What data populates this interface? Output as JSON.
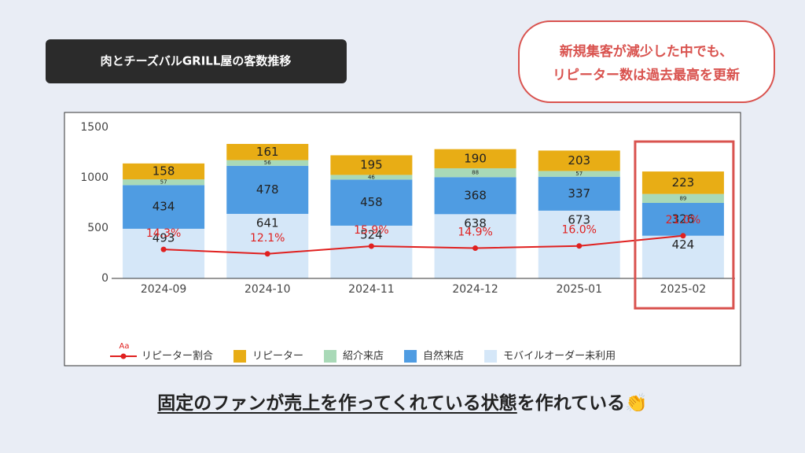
{
  "title": "肉とチーズバルGRILL屋の客数推移",
  "callout": [
    "新規集客が減少した中でも、",
    "リピーター数は過去最高を更新"
  ],
  "caption": {
    "underlined": "固定のファンが売上を作ってくれている状態",
    "rest": "を作れている👏"
  },
  "chart_data": {
    "type": "bar",
    "stacked": true,
    "categories": [
      "2024-09",
      "2024-10",
      "2024-11",
      "2024-12",
      "2025-01",
      "2025-02"
    ],
    "series": [
      {
        "name": "モバイルオーダー未利用",
        "color": "#d5e7f8",
        "values": [
          493,
          641,
          524,
          638,
          673,
          424
        ]
      },
      {
        "name": "自然来店",
        "color": "#4f9ce2",
        "values": [
          434,
          478,
          458,
          368,
          337,
          326
        ]
      },
      {
        "name": "紹介来店",
        "color": "#a9d9b7",
        "values": [
          57,
          56,
          46,
          88,
          57,
          89
        ]
      },
      {
        "name": "リピーター",
        "color": "#e8ad15",
        "values": [
          158,
          161,
          195,
          190,
          203,
          223
        ]
      },
      {
        "name": "リピーター割合",
        "color": "#e0201f",
        "type": "line",
        "axis": "y2",
        "values": [
          14.3,
          12.1,
          15.9,
          14.9,
          16.0,
          21.0
        ],
        "value_labels": [
          "14.3%",
          "12.1%",
          "15.9%",
          "14.9%",
          "16.0%",
          "21.0%"
        ]
      }
    ],
    "ylim": [
      0,
      1500
    ],
    "yticks": [
      0,
      500,
      1000,
      1500
    ],
    "y2lim": [
      0,
      74.4
    ],
    "grid": false,
    "legend": "bottom",
    "legend_line_label": "Aa",
    "highlight": "2025-02"
  }
}
